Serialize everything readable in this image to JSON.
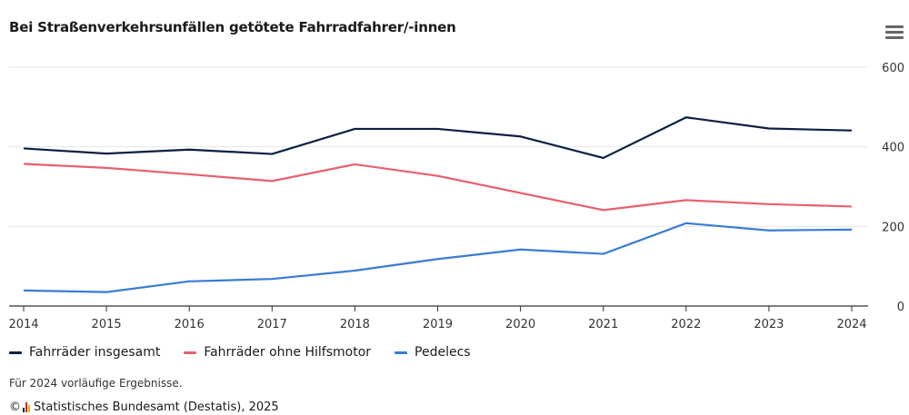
{
  "title": "Bei Straßenverkehrsunfällen getötete Fahrradfahrer/-innen",
  "menu_icon": "hamburger-menu-icon",
  "chart_data": {
    "type": "line",
    "title": "Bei Straßenverkehrsunfällen getötete Fahrradfahrer/-innen",
    "categories": [
      "2014",
      "2015",
      "2016",
      "2017",
      "2018",
      "2019",
      "2020",
      "2021",
      "2022",
      "2023",
      "2024"
    ],
    "y_ticks": [
      "0",
      "200",
      "400",
      "600"
    ],
    "ylim": [
      0,
      600
    ],
    "grid": true,
    "y_axis_side": "right",
    "legend_position": "bottom-left",
    "series": [
      {
        "name": "Fahrräder insgesamt",
        "color": "#0b1f44",
        "values": [
          396,
          383,
          393,
          382,
          445,
          445,
          426,
          372,
          474,
          446,
          441
        ]
      },
      {
        "name": "Fahrräder ohne Hilfsmotor",
        "color": "#e8606f",
        "values": [
          357,
          347,
          331,
          314,
          356,
          327,
          284,
          241,
          266,
          256,
          250
        ]
      },
      {
        "name": "Pedelecs",
        "color": "#3a7bd5",
        "values": [
          39,
          35,
          62,
          68,
          89,
          118,
          142,
          131,
          208,
          190,
          192
        ]
      }
    ]
  },
  "note": "Für 2024 vorläufige Ergebnisse.",
  "source": {
    "copyright": "©",
    "logo_icon": "destatis-logo-icon",
    "text": "Statistisches Bundesamt (Destatis), 2025"
  }
}
